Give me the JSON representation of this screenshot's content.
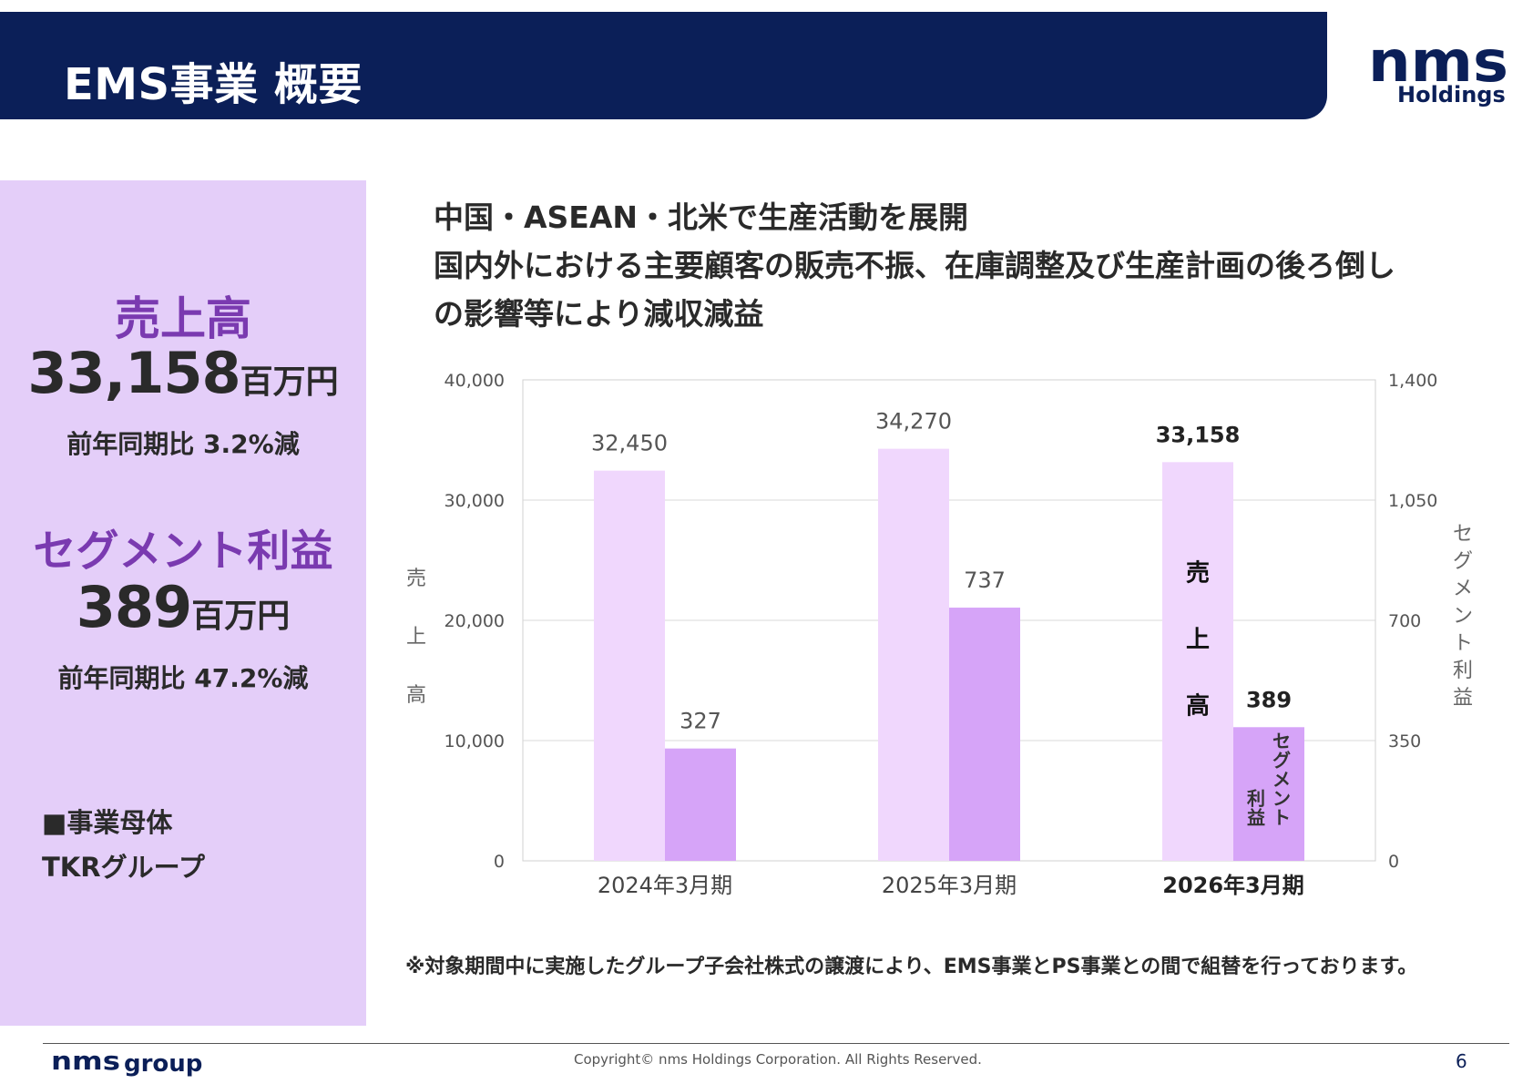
{
  "header": {
    "title": "EMS事業 概要"
  },
  "brand": {
    "logo_text": "nms",
    "logo_sub": "Holdings",
    "footer_logo_main": "nms",
    "footer_logo_sub": "group"
  },
  "kpis": [
    {
      "label": "売上高",
      "value": "33,158",
      "unit": "百万円",
      "change": "前年同期比  3.2%減"
    },
    {
      "label": "セグメント利益",
      "value": "389",
      "unit": "百万円",
      "change": "前年同期比  47.2%減"
    }
  ],
  "business": {
    "heading": "■事業母体",
    "value": "TKRグループ"
  },
  "headline": [
    "中国・ASEAN・北米で生産活動を展開",
    "国内外における主要顧客の販売不振、在庫調整及び生産計画の後ろ倒し",
    "の影響等により減収減益"
  ],
  "chart_data": {
    "type": "bar",
    "categories": [
      "2024年3月期",
      "2025年3月期",
      "2026年3月期"
    ],
    "series": [
      {
        "name": "売上高",
        "axis": "left",
        "values": [
          32450,
          34270,
          33158
        ],
        "labels": [
          "32,450",
          "34,270",
          "33,158"
        ],
        "color": "#f0d7fd"
      },
      {
        "name": "セグメント利益",
        "axis": "right",
        "values": [
          327,
          737,
          389
        ],
        "labels": [
          "327",
          "737",
          "389"
        ],
        "color": "#d6a4f8"
      }
    ],
    "ylabel_left": "売上高",
    "ylabel_right": "セグメント利益",
    "ylim_left": [
      0,
      40000
    ],
    "yticks_left": [
      "0",
      "10,000",
      "20,000",
      "30,000",
      "40,000"
    ],
    "ylim_right": [
      0,
      1400
    ],
    "yticks_right": [
      "0",
      "350",
      "700",
      "1,050",
      "1,400"
    ],
    "highlight_index": 2,
    "grid": true
  },
  "footnote": "※対象期間中に実施したグループ子会社株式の譲渡により、EMS事業とPS事業との間で組替を行っております。",
  "footer": {
    "copyright": "Copyright© nms Holdings Corporation. All Rights Reserved.",
    "page": "6"
  },
  "colors": {
    "navy": "#0b1f58",
    "panel": "#e4cef9",
    "accent_purple": "#7a3ab0"
  }
}
